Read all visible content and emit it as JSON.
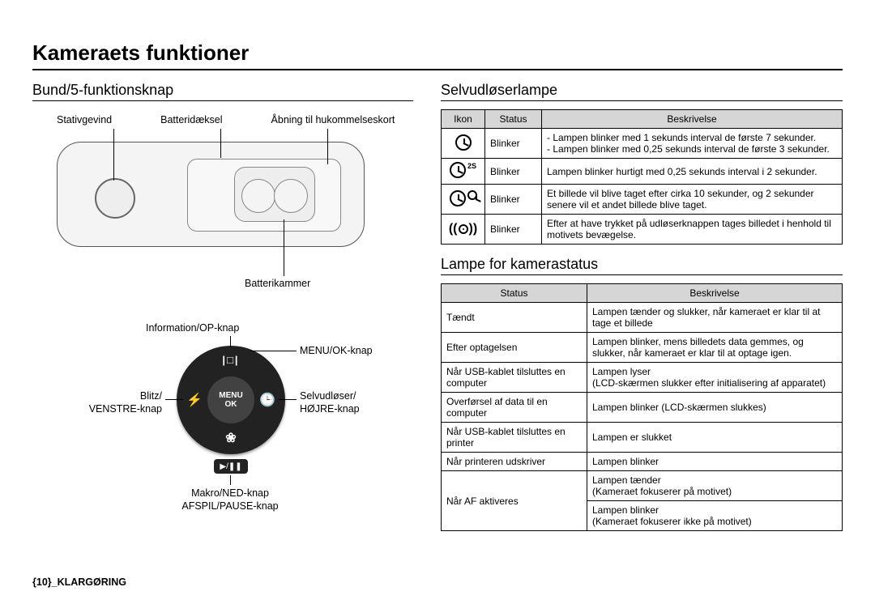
{
  "title": "Kameraets funktioner",
  "left": {
    "heading": "Bund/5-funktionsknap",
    "bottomView": {
      "topLabels": [
        "Stativgevind",
        "Batteridæksel",
        "Åbning til hukommelseskort"
      ],
      "batteryLabel": "Batterikammer"
    },
    "fiveWay": {
      "up": "Information/OP-knap",
      "menu": "MENU/OK-knap",
      "left1": "Blitz/",
      "left2": "VENSTRE-knap",
      "right1": "Selvudløser/",
      "right2": "HØJRE-knap",
      "down1": "Makro/NED-knap",
      "down2": "AFSPIL/PAUSE-knap",
      "centerTop": "MENU",
      "centerBottom": "OK",
      "glyphUp": "|□|",
      "glyphLeft": "⚡",
      "glyphRight": "🕒",
      "glyphDown": "❀",
      "play": "▶/❚❚"
    }
  },
  "right": {
    "heading1": "Selvudløserlampe",
    "table1": {
      "headers": [
        "Ikon",
        "Status",
        "Beskrivelse"
      ],
      "rows": [
        {
          "iconSup": "",
          "iconDouble": false,
          "motion": false,
          "status": "Blinker",
          "desc": "- Lampen blinker med 1 sekunds interval de første 7 sekunder.\n- Lampen blinker med 0,25 sekunds interval de første 3 sekunder."
        },
        {
          "iconSup": "2S",
          "iconDouble": false,
          "motion": false,
          "status": "Blinker",
          "desc": "Lampen blinker hurtigt med 0,25 sekunds interval i 2 sekunder."
        },
        {
          "iconSup": "",
          "iconDouble": true,
          "motion": false,
          "status": "Blinker",
          "desc": "Et billede vil blive taget efter cirka 10 sekunder, og 2 sekunder senere vil et andet billede blive taget."
        },
        {
          "iconSup": "",
          "iconDouble": false,
          "motion": true,
          "status": "Blinker",
          "desc": "Efter at have trykket på udløserknappen tages billedet i henhold til motivets bevægelse."
        }
      ]
    },
    "heading2": "Lampe for kamerastatus",
    "table2": {
      "headers": [
        "Status",
        "Beskrivelse"
      ],
      "rows": [
        {
          "status": "Tændt",
          "desc": "Lampen tænder og slukker, når kameraet er klar til at tage et billede"
        },
        {
          "status": "Efter optagelsen",
          "desc": "Lampen blinker, mens billedets data gemmes, og slukker, når kameraet er klar til at optage igen."
        },
        {
          "status": "Når USB-kablet tilsluttes en computer",
          "desc": "Lampen lyser\n(LCD-skærmen slukker efter initialisering af apparatet)"
        },
        {
          "status": "Overførsel af data til en computer",
          "desc": "Lampen blinker (LCD-skærmen slukkes)"
        },
        {
          "status": "Når USB-kablet tilsluttes en printer",
          "desc": "Lampen er slukket"
        },
        {
          "status": "Når printeren udskriver",
          "desc": "Lampen blinker"
        },
        {
          "status": "Når AF aktiveres",
          "desc": "Lampen tænder\n(Kameraet fokuserer på motivet)\nLampen blinker\n(Kameraet fokuserer ikke på motivet)",
          "split": true,
          "descTop": "Lampen tænder\n(Kameraet fokuserer på motivet)",
          "descBottom": "Lampen blinker\n(Kameraet fokuserer ikke på motivet)"
        }
      ]
    }
  },
  "footer": "{10}_KLARGØRING"
}
